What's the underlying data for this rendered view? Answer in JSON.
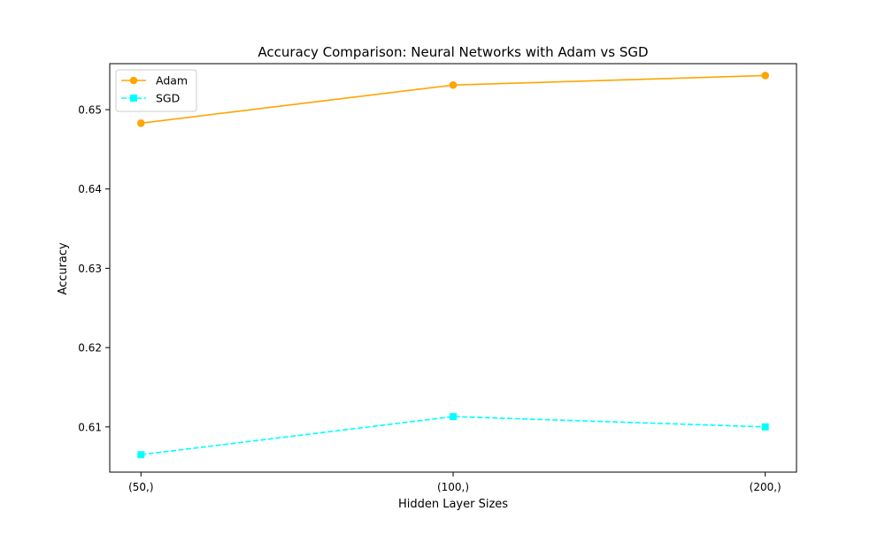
{
  "chart_data": {
    "type": "line",
    "title": "Accuracy Comparison: Neural Networks with Adam vs SGD",
    "xlabel": "Hidden Layer Sizes",
    "ylabel": "Accuracy",
    "categories": [
      "(50,)",
      "(100,)",
      "(200,)"
    ],
    "ylim": [
      0.6043,
      0.6558
    ],
    "yticks": [
      0.61,
      0.62,
      0.63,
      0.64,
      0.65
    ],
    "ytick_labels": [
      "0.61",
      "0.62",
      "0.63",
      "0.64",
      "0.65"
    ],
    "grid": false,
    "legend_position": "top-left",
    "series": [
      {
        "name": "Adam",
        "values": [
          0.6483,
          0.6531,
          0.6543
        ],
        "color": "#ffa500",
        "marker": "circle",
        "line_style": "solid"
      },
      {
        "name": "SGD",
        "values": [
          0.6065,
          0.6113,
          0.61
        ],
        "color": "#00ffff",
        "marker": "square",
        "line_style": "dashed"
      }
    ]
  }
}
